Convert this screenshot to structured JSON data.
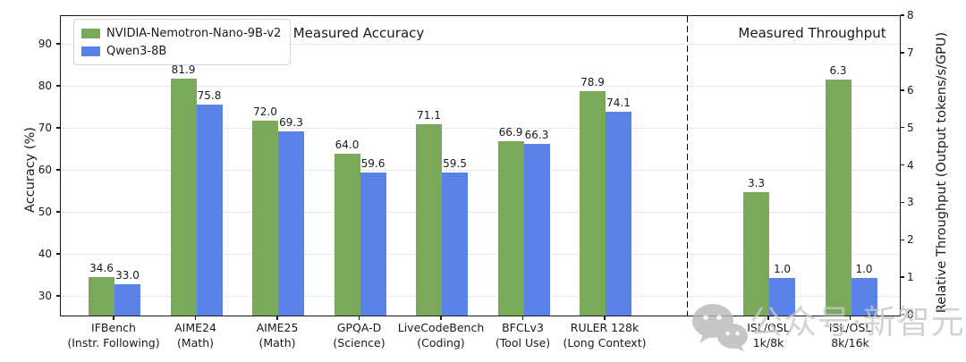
{
  "chart_data": {
    "type": "bar",
    "titles": {
      "accuracy_section": "Measured Accuracy",
      "throughput_section": "Measured Throughput"
    },
    "series": [
      {
        "name": "NVIDIA-Nemotron-Nano-9B-v2",
        "color": "#7BA95B"
      },
      {
        "name": "Qwen3-8B",
        "color": "#5B82E8"
      }
    ],
    "legend": {
      "position": "upper left"
    },
    "left_axis": {
      "label": "Accuracy (%)",
      "ticks": [
        30,
        40,
        50,
        60,
        70,
        80,
        90
      ],
      "range": [
        25.5,
        96.8
      ]
    },
    "right_axis": {
      "label": "Relative Throughput (Output tokens/s/GPU)",
      "ticks": [
        0,
        1,
        2,
        3,
        4,
        5,
        6,
        7,
        8
      ],
      "range": [
        0,
        8
      ]
    },
    "grid": "horizontal gridlines at left-axis ticks",
    "groups": [
      {
        "slot": 0,
        "axis": "left",
        "label_line1": "IFBench",
        "label_line2": "(Instr. Following)",
        "values": [
          34.6,
          33.0
        ],
        "labels": [
          "34.6",
          "33.0"
        ]
      },
      {
        "slot": 1,
        "axis": "left",
        "label_line1": "AIME24",
        "label_line2": "(Math)",
        "values": [
          81.9,
          75.8
        ],
        "labels": [
          "81.9",
          "75.8"
        ]
      },
      {
        "slot": 2,
        "axis": "left",
        "label_line1": "AIME25",
        "label_line2": "(Math)",
        "values": [
          72.0,
          69.3
        ],
        "labels": [
          "72.0",
          "69.3"
        ]
      },
      {
        "slot": 3,
        "axis": "left",
        "label_line1": "GPQA-D",
        "label_line2": "(Science)",
        "values": [
          64.0,
          59.6
        ],
        "labels": [
          "64.0",
          "59.6"
        ]
      },
      {
        "slot": 4,
        "axis": "left",
        "label_line1": "LiveCodeBench",
        "label_line2": "(Coding)",
        "values": [
          71.1,
          59.5
        ],
        "labels": [
          "71.1",
          "59.5"
        ]
      },
      {
        "slot": 5,
        "axis": "left",
        "label_line1": "BFCLv3",
        "label_line2": "(Tool Use)",
        "values": [
          66.9,
          66.3
        ],
        "labels": [
          "66.9",
          "66.3"
        ]
      },
      {
        "slot": 6,
        "axis": "left",
        "label_line1": "RULER 128k",
        "label_line2": "(Long Context)",
        "values": [
          78.9,
          74.1
        ],
        "labels": [
          "78.9",
          "74.1"
        ]
      },
      {
        "slot": 8,
        "axis": "right",
        "label_line1": "ISL/OSL",
        "label_line2": "1k/8k",
        "values": [
          3.3,
          1.0
        ],
        "labels": [
          "3.3",
          "1.0"
        ]
      },
      {
        "slot": 9,
        "axis": "right",
        "label_line1": "ISL/OSL",
        "label_line2": "8k/16k",
        "values": [
          6.3,
          1.0
        ],
        "labels": [
          "6.3",
          "1.0"
        ]
      }
    ],
    "separator": {
      "slot": 7,
      "style": "black dashed vertical line"
    }
  },
  "watermark": {
    "icon": "wechat-logo",
    "text": "公众号·新智元"
  }
}
